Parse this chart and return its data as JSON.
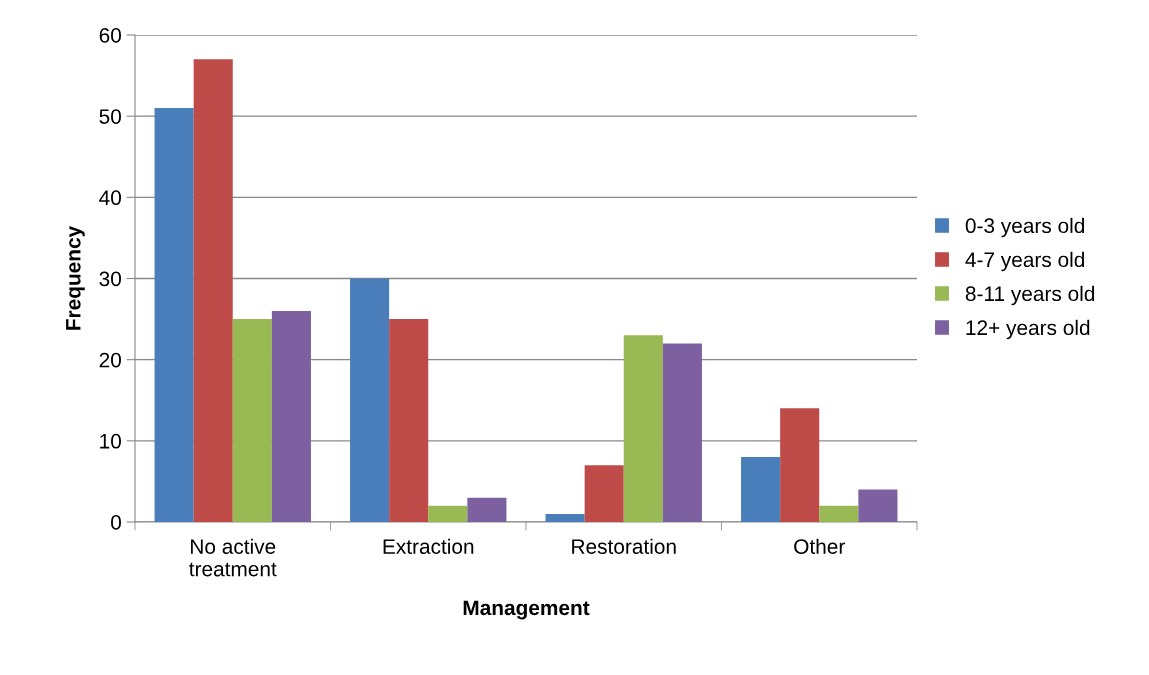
{
  "chart_data": {
    "type": "bar",
    "xlabel": "Management",
    "ylabel": "Frequency",
    "categories": [
      "No active\ntreatment",
      "Extraction",
      "Restoration",
      "Other"
    ],
    "series": [
      {
        "name": "0-3 years old",
        "color": "#4a7ebb",
        "values": [
          51,
          30,
          1,
          8
        ]
      },
      {
        "name": "4-7 years old",
        "color": "#be4b48",
        "values": [
          57,
          25,
          7,
          14
        ]
      },
      {
        "name": "8-11 years old",
        "color": "#98b954",
        "values": [
          25,
          2,
          23,
          2
        ]
      },
      {
        "name": "12+ years old",
        "color": "#7d60a0",
        "values": [
          26,
          3,
          22,
          4
        ]
      }
    ],
    "ylim": [
      0,
      60
    ],
    "yticks": [
      0,
      10,
      20,
      30,
      40,
      50,
      60
    ],
    "grid": "y",
    "legend": "right"
  }
}
